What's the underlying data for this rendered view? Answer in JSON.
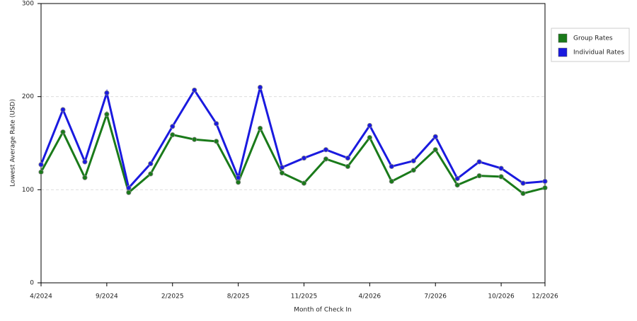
{
  "chart_data": {
    "type": "line",
    "x_label": "Month of Check In",
    "y_label": "Lowest Average Rate (USD)",
    "categories": [
      "4/2024",
      null,
      null,
      "9/2024",
      null,
      null,
      "2/2025",
      null,
      null,
      "8/2025",
      null,
      null,
      "11/2025",
      null,
      null,
      "4/2026",
      null,
      null,
      "7/2026",
      null,
      null,
      "10/2026",
      null,
      "12/2026"
    ],
    "series": [
      {
        "name": "Group Rates",
        "color": "#1a7a1a",
        "values": [
          119,
          162,
          113,
          181,
          97,
          117,
          159,
          154,
          152,
          108,
          166,
          118,
          107,
          133,
          125,
          156,
          109,
          121,
          143,
          105,
          115,
          114,
          96,
          102
        ]
      },
      {
        "name": "Individual Rates",
        "color": "#1a1adf",
        "values": [
          127,
          186,
          130,
          204,
          102,
          128,
          168,
          207,
          171,
          113,
          210,
          124,
          134,
          143,
          134,
          169,
          125,
          131,
          157,
          112,
          130,
          123,
          107,
          109
        ]
      }
    ],
    "ylim": [
      0,
      300
    ],
    "yticks": [
      0,
      100,
      200,
      300
    ],
    "grid": true
  }
}
